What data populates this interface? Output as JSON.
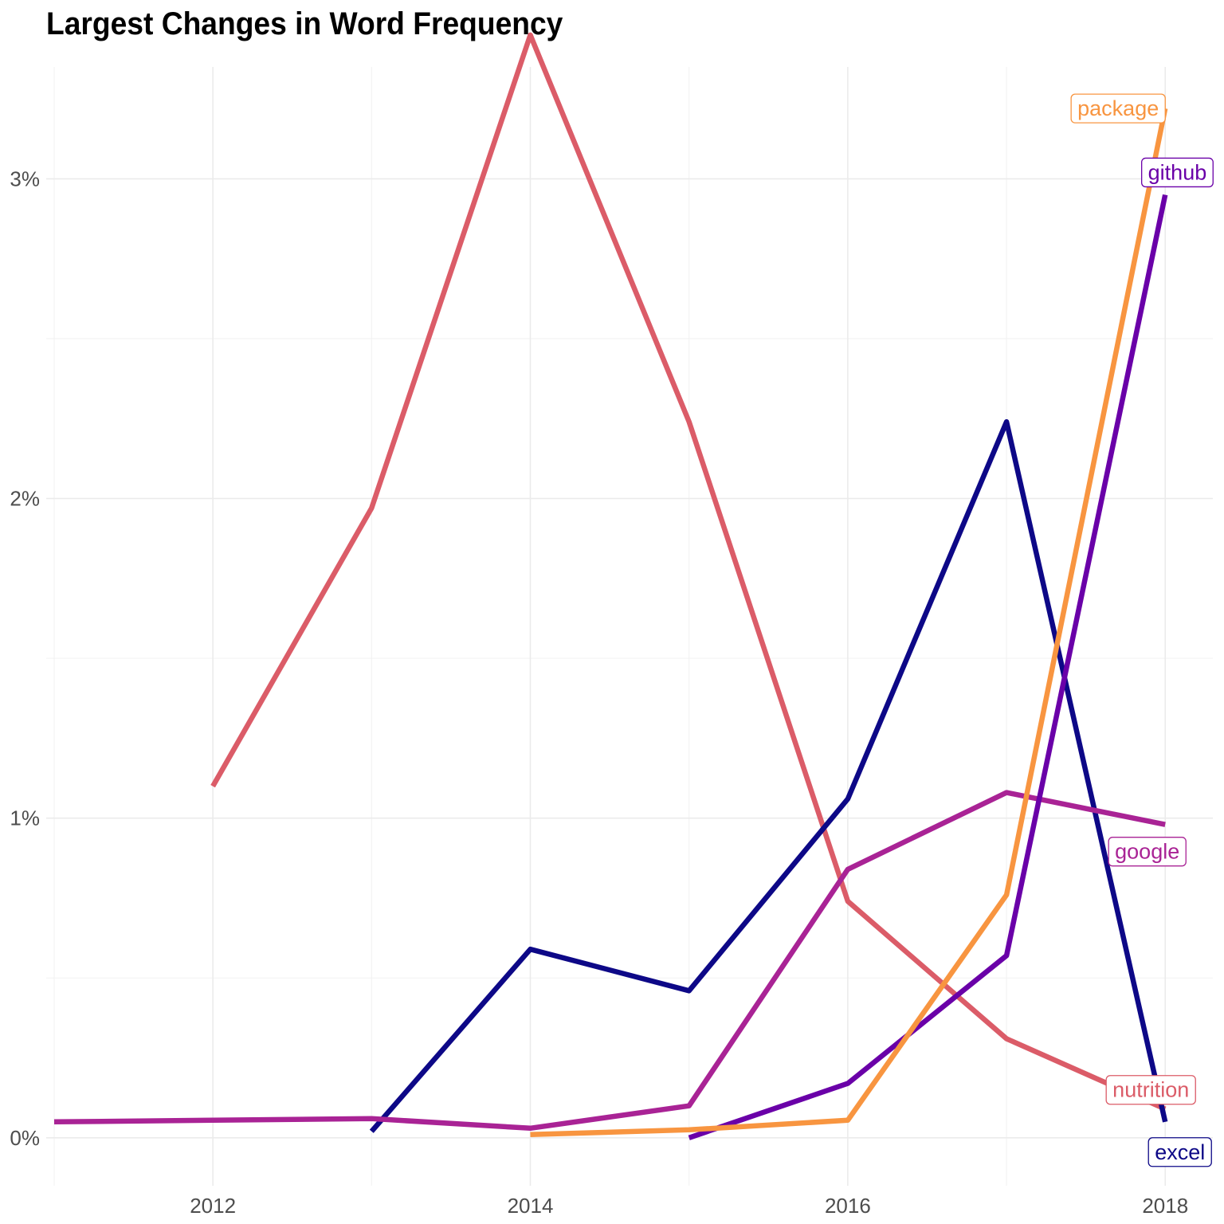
{
  "chart_data": {
    "type": "line",
    "title": "Largest Changes in Word Frequency",
    "xlabel": "",
    "ylabel": "",
    "x_ticks": [
      "2012",
      "2014",
      "2016",
      "2018"
    ],
    "y_ticks": [
      "0%",
      "1%",
      "2%",
      "3%"
    ],
    "xlim": [
      2010.95,
      2018.3
    ],
    "ylim": [
      -0.0015,
      0.0335
    ],
    "grid": true,
    "legend": "none",
    "series": [
      {
        "name": "nutrition",
        "color": "#DB5C68",
        "x": [
          2012,
          2013,
          2014,
          2015,
          2016,
          2017,
          2018
        ],
        "y": [
          0.011,
          0.0197,
          0.0345,
          0.0224,
          0.0074,
          0.0031,
          0.0009
        ]
      },
      {
        "name": "excel",
        "color": "#0D0887",
        "x": [
          2013,
          2014,
          2015,
          2016,
          2017,
          2018
        ],
        "y": [
          0.0002,
          0.0059,
          0.0046,
          0.0106,
          0.0224,
          0.0005
        ]
      },
      {
        "name": "google",
        "color": "#A92395",
        "x": [
          2011,
          2012,
          2013,
          2014,
          2015,
          2016,
          2017,
          2018
        ],
        "y": [
          0.0005,
          0.00055,
          0.0006,
          0.0003,
          0.001,
          0.0084,
          0.0108,
          0.0098
        ]
      },
      {
        "name": "github",
        "color": "#6A00A8",
        "x": [
          2015,
          2016,
          2017,
          2018
        ],
        "y": [
          0.0,
          0.0017,
          0.0057,
          0.0295
        ]
      },
      {
        "name": "package",
        "color": "#F89540",
        "x": [
          2014,
          2015,
          2016,
          2017,
          2018
        ],
        "y": [
          0.0001,
          0.00025,
          0.00055,
          0.0076,
          0.0322
        ]
      }
    ]
  }
}
